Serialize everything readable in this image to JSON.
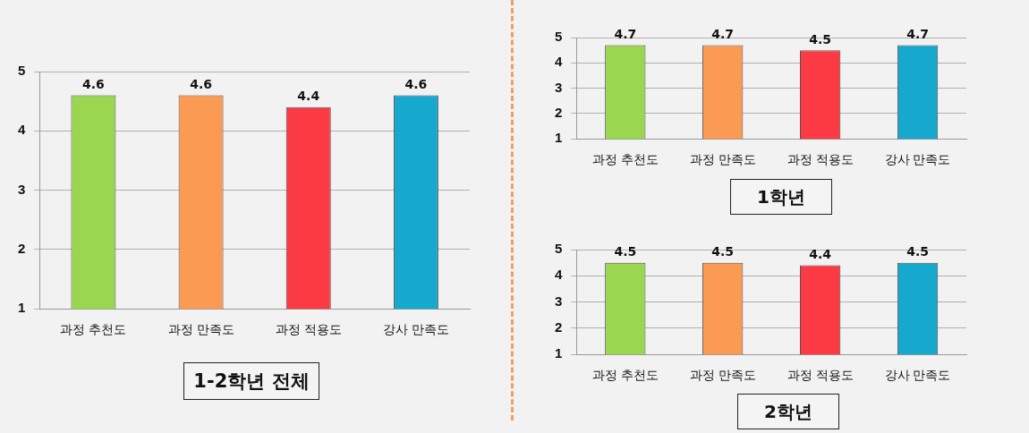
{
  "chart_data": [
    {
      "type": "bar",
      "title": "1-2학년 전체",
      "categories": [
        "과정 추천도",
        "과정 만족도",
        "과정 적용도",
        "강사 만족도"
      ],
      "values": [
        4.6,
        4.6,
        4.4,
        4.6
      ],
      "colors": [
        "#9ad650",
        "#fb9b53",
        "#fb3a43",
        "#17a8cd"
      ],
      "ylim": [
        1,
        5
      ],
      "yticks": [
        1,
        2,
        3,
        4,
        5
      ],
      "grid": "y",
      "data_labels": true
    },
    {
      "type": "bar",
      "title": "1학년",
      "categories": [
        "과정 추천도",
        "과정 만족도",
        "과정 적용도",
        "강사 만족도"
      ],
      "values": [
        4.7,
        4.7,
        4.5,
        4.7
      ],
      "colors": [
        "#9ad650",
        "#fb9b53",
        "#fb3a43",
        "#17a8cd"
      ],
      "ylim": [
        1,
        5
      ],
      "yticks": [
        1,
        2,
        3,
        4,
        5
      ],
      "grid": "y",
      "data_labels": true
    },
    {
      "type": "bar",
      "title": "2학년",
      "categories": [
        "과정 추천도",
        "과정 만족도",
        "과정 적용도",
        "강사 만족도"
      ],
      "values": [
        4.5,
        4.5,
        4.4,
        4.5
      ],
      "colors": [
        "#9ad650",
        "#fb9b53",
        "#fb3a43",
        "#17a8cd"
      ],
      "ylim": [
        1,
        5
      ],
      "yticks": [
        1,
        2,
        3,
        4,
        5
      ],
      "grid": "y",
      "data_labels": true
    }
  ]
}
